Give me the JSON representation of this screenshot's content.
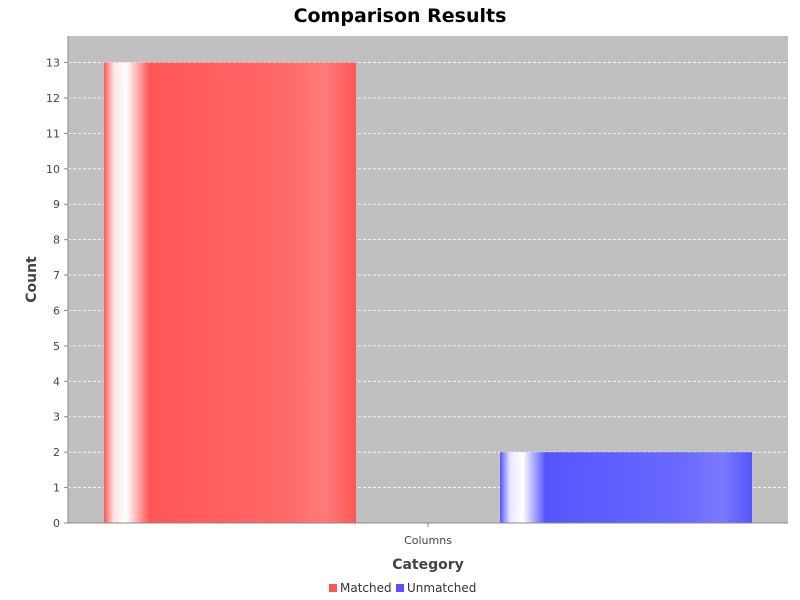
{
  "chart_data": {
    "type": "bar",
    "title": "Comparison Results",
    "xlabel": "Category",
    "ylabel": "Count",
    "categories": [
      "Columns"
    ],
    "ylim": [
      0,
      13.75
    ],
    "yticks": [
      0,
      1,
      2,
      3,
      4,
      5,
      6,
      7,
      8,
      9,
      10,
      11,
      12,
      13
    ],
    "grid": true,
    "legend_position": "bottom",
    "series": [
      {
        "name": "Matched",
        "values": [
          13
        ],
        "color": "#ff5555"
      },
      {
        "name": "Unmatched",
        "values": [
          2
        ],
        "color": "#5555ff"
      }
    ],
    "colors": {
      "plot_background": "#c0c0c0",
      "gridline": "#ffffff"
    }
  }
}
